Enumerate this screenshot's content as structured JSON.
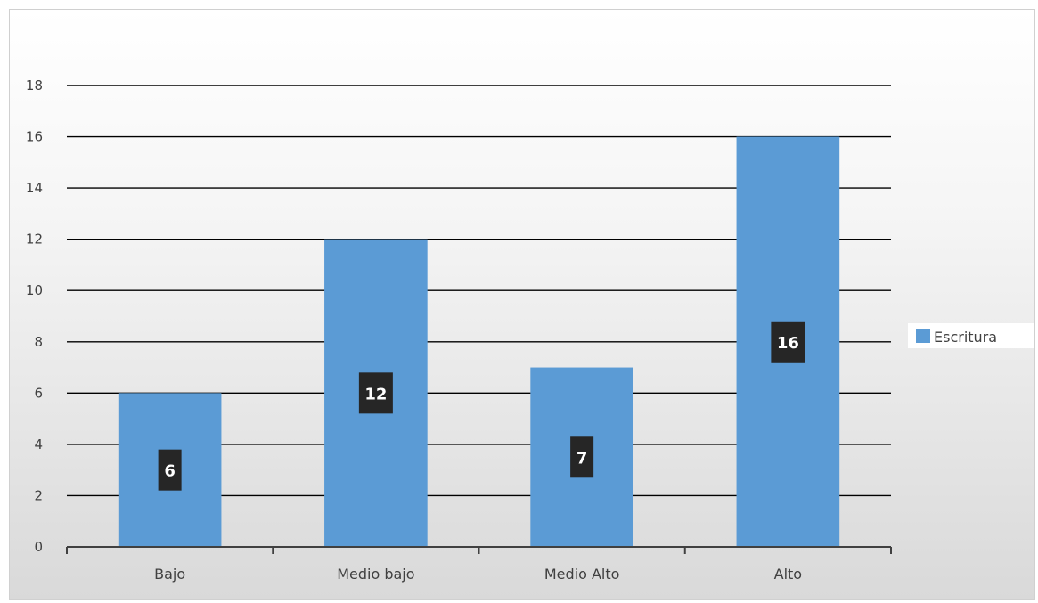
{
  "chart_data": {
    "type": "bar",
    "categories": [
      "Bajo",
      "Medio bajo",
      "Medio Alto",
      "Alto"
    ],
    "series": [
      {
        "name": "Escritura",
        "values": [
          6,
          12,
          7,
          16
        ],
        "color": "#5B9BD5"
      }
    ],
    "title": "",
    "xlabel": "",
    "ylabel": "",
    "ylim": [
      0,
      18
    ],
    "yticks": [
      0,
      2,
      4,
      6,
      8,
      10,
      12,
      14,
      16,
      18
    ],
    "grid": true,
    "legend_position": "right",
    "data_labels": true,
    "colors": {
      "bar": "#5B9BD5",
      "gridline": "#000000",
      "data_label_bg": "#262626",
      "data_label_text": "#ffffff",
      "axis_text": "#404040"
    }
  }
}
